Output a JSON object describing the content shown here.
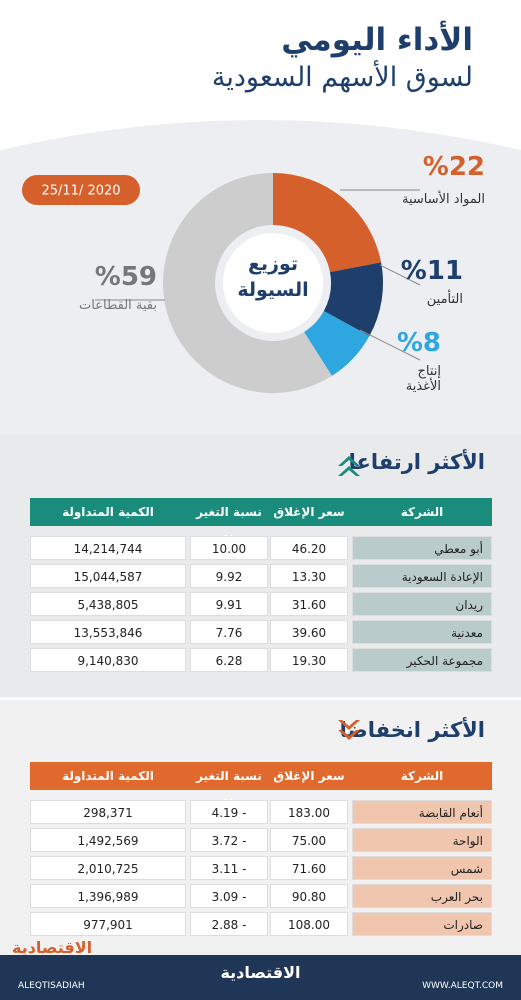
{
  "header": {
    "title": "الأداء اليومي",
    "subtitle": "لسوق الأسهم السعودية",
    "date": "25/11/ 2020"
  },
  "chart_data": {
    "type": "pie",
    "title": "توزيع السيولة",
    "categories": [
      "المواد الأساسية",
      "التأمين",
      "إنتاج الأغذية",
      "بقية القطاعات"
    ],
    "values": [
      22,
      11,
      8,
      59
    ],
    "value_labels": [
      "%22",
      "%11",
      "%8",
      "%59"
    ],
    "colors": [
      "#d5602b",
      "#1e3e6c",
      "#2ea6df",
      "#cdcdcd"
    ]
  },
  "rising": {
    "title": "الأكثر ارتفاعا",
    "columns": [
      "الشركة",
      "سعر الإغلاق",
      "نسبة التغير %",
      "الكمية المتداولة"
    ],
    "rows": [
      [
        "أبو معطي",
        "46.20",
        "10.00",
        "14,214,744"
      ],
      [
        "الإعادة السعودية",
        "13.30",
        "9.92",
        "15,044,587"
      ],
      [
        "ريدان",
        "31.60",
        "9.91",
        "5,438,805"
      ],
      [
        "معدنية",
        "39.60",
        "7.76",
        "13,553,846"
      ],
      [
        "مجموعة الحكير",
        "19.30",
        "6.28",
        "9,140,830"
      ]
    ]
  },
  "falling": {
    "title": "الأكثر انخفاضا",
    "columns": [
      "الشركة",
      "سعر الإغلاق",
      "نسبة التغير %",
      "الكمية المتداولة"
    ],
    "rows": [
      [
        "أنعام القابضة",
        "183.00",
        "- 4.19",
        "298,371"
      ],
      [
        "الواحة",
        "75.00",
        "- 3.72",
        "1,492,569"
      ],
      [
        "شمس",
        "71.60",
        "- 3.11",
        "2,010,725"
      ],
      [
        "بحر العرب",
        "90.80",
        "- 3.09",
        "1,396,989"
      ],
      [
        "صادرات",
        "108.00",
        "- 2.88",
        "977,901"
      ]
    ]
  },
  "footer": {
    "logo": "الاقتصادية",
    "handle": "ALEQTISADIAH",
    "url": "WWW.ALEQT.COM"
  }
}
